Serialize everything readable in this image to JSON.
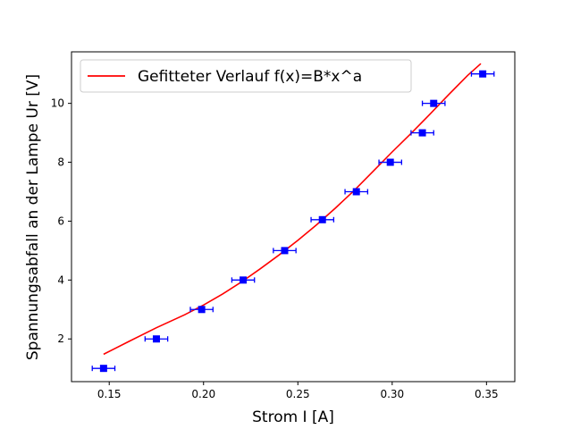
{
  "chart_data": {
    "type": "scatter",
    "xlabel": "Strom I [A]",
    "ylabel": "Spannungsabfall an der Lampe Ur [V]",
    "xlim": [
      0.13,
      0.365
    ],
    "ylim": [
      0.55,
      11.75
    ],
    "xticks": [
      0.15,
      0.2,
      0.25,
      0.3,
      0.35
    ],
    "xtick_labels": [
      "0.15",
      "0.20",
      "0.25",
      "0.30",
      "0.35"
    ],
    "yticks": [
      2,
      4,
      6,
      8,
      10
    ],
    "ytick_labels": [
      "2",
      "4",
      "6",
      "8",
      "10"
    ],
    "grid": false,
    "legend_position": "top-left",
    "series": [
      {
        "type": "line",
        "name": "Gefitteter Verlauf f(x)=B*x^a",
        "color": "#ff0000",
        "x": [
          0.147,
          0.16,
          0.175,
          0.19,
          0.2,
          0.21,
          0.22,
          0.23,
          0.24,
          0.25,
          0.26,
          0.27,
          0.28,
          0.29,
          0.3,
          0.31,
          0.32,
          0.33,
          0.34,
          0.347
        ],
        "y": [
          1.48,
          1.9,
          2.38,
          2.82,
          3.15,
          3.52,
          3.93,
          4.38,
          4.85,
          5.35,
          5.88,
          6.45,
          7.05,
          7.7,
          8.35,
          8.98,
          9.63,
          10.3,
          10.95,
          11.35
        ]
      },
      {
        "type": "errorbar",
        "color": "#0000ff",
        "x": [
          0.147,
          0.175,
          0.199,
          0.221,
          0.243,
          0.263,
          0.281,
          0.299,
          0.316,
          0.322,
          0.348
        ],
        "y": [
          1.0,
          2.0,
          3.0,
          4.0,
          5.0,
          6.05,
          7.0,
          8.0,
          9.0,
          10.0,
          11.0
        ],
        "xerr": 0.006
      }
    ]
  }
}
